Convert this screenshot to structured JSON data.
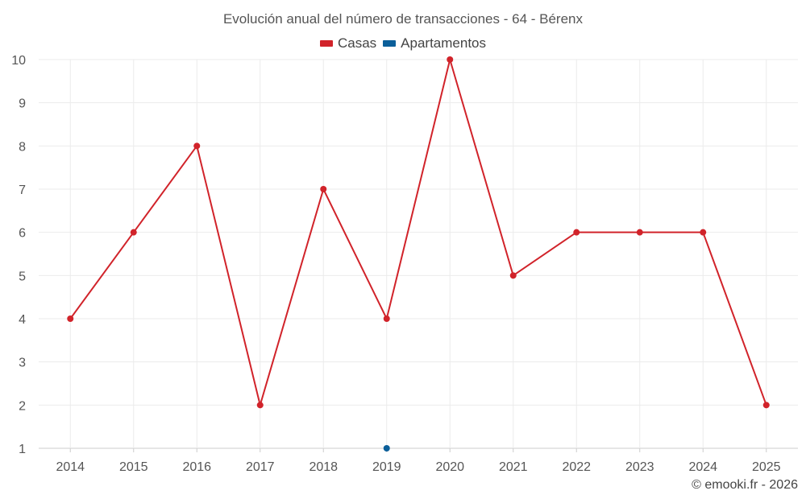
{
  "chart_data": {
    "type": "line",
    "title": "Evolución anual del número de transacciones - 64 - Bérenx",
    "categories": [
      "2014",
      "2015",
      "2016",
      "2017",
      "2018",
      "2019",
      "2020",
      "2021",
      "2022",
      "2023",
      "2024",
      "2025"
    ],
    "series": [
      {
        "name": "Casas",
        "color": "#d1232a",
        "values": [
          4,
          6,
          8,
          2,
          7,
          4,
          10,
          5,
          6,
          6,
          6,
          2
        ]
      },
      {
        "name": "Apartamentos",
        "color": "#0b5f9a",
        "values": [
          null,
          null,
          null,
          null,
          null,
          1,
          null,
          null,
          null,
          null,
          null,
          null
        ]
      }
    ],
    "yticks": [
      1,
      2,
      3,
      4,
      5,
      6,
      7,
      8,
      9,
      10
    ],
    "ylim": [
      1,
      10
    ],
    "grid": true,
    "legend_position": "top-center"
  },
  "footer": {
    "credit": "© emooki.fr - 2026"
  }
}
